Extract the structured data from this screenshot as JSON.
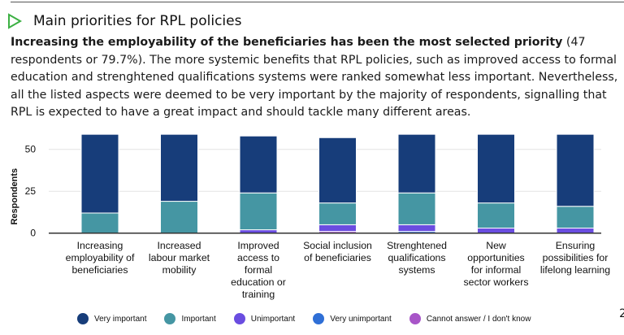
{
  "header": {
    "title": "Main priorities for RPL policies",
    "icon": "play-triangle-icon",
    "icon_color": "#3cb043"
  },
  "paragraph": {
    "bold": "Increasing the employability of the beneficiaries has been the most selected priority",
    "rest": " (47 respondents or 79.7%).  The more systemic benefits that RPL policies, such as improved access to formal education and strenghtened qualifications systems were ranked somewhat less important. Nevertheless, all the listed aspects were deemed to be very important by the majority of respondents, signalling that RPL is expected to have a great impact and should tackle many different areas."
  },
  "page_number": "2",
  "chart_data": {
    "type": "bar",
    "stacked": true,
    "ylabel": "Respondents",
    "ylim": [
      0,
      60
    ],
    "yticks": [
      0,
      25,
      50
    ],
    "grid": true,
    "legend_position": "bottom",
    "categories": [
      "Increasing employability of beneficiaries",
      "Increased labour market mobility",
      "Improved access to formal education or training",
      "Social inclusion of beneficiaries",
      "Strenghtened qualifications systems",
      "New opportunities for informal sector workers",
      "Ensuring possibilities for lifelong learning"
    ],
    "category_lines": [
      [
        "Increasing",
        "employability of",
        "beneficiaries"
      ],
      [
        "Increased",
        "labour market",
        "mobility"
      ],
      [
        "Improved",
        "access to",
        "formal",
        "education or",
        "training"
      ],
      [
        "Social inclusion",
        "of beneficiaries"
      ],
      [
        "Strenghtened",
        "qualifications",
        "systems"
      ],
      [
        "New",
        "opportunities",
        "for informal",
        "sector workers"
      ],
      [
        "Ensuring",
        "possibilities for",
        "lifelong learning"
      ]
    ],
    "series": [
      {
        "name": "Cannot answer / I don't know",
        "color": "#a855c8",
        "values": [
          0,
          0,
          0,
          1,
          0,
          0,
          0
        ]
      },
      {
        "name": "Very unimportant",
        "color": "#2f6fd6",
        "values": [
          0,
          0,
          0,
          0,
          1,
          0,
          0
        ]
      },
      {
        "name": "Unimportant",
        "color": "#6a4de0",
        "values": [
          0,
          0,
          2,
          4,
          4,
          3,
          3
        ]
      },
      {
        "name": "Important",
        "color": "#4596a3",
        "values": [
          12,
          19,
          22,
          13,
          19,
          15,
          13
        ]
      },
      {
        "name": "Very important",
        "color": "#173d7a",
        "values": [
          47,
          40,
          34,
          39,
          35,
          41,
          43
        ]
      }
    ],
    "legend_order": [
      "Very important",
      "Important",
      "Unimportant",
      "Very unimportant",
      "Cannot answer / I don't know"
    ]
  }
}
